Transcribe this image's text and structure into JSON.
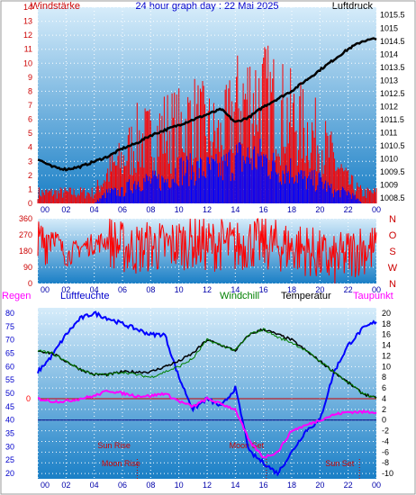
{
  "header": {
    "title": "24 hour graph day : 22 Mai 2025",
    "left_label": "Windstärke",
    "right_label": "Luftdruck"
  },
  "legend2": {
    "regen": "Regen",
    "luftfeuchte": "Luftfeuchte",
    "windchill": "Windchill",
    "temperatur": "Temperatur",
    "taupunkt": "Taupunkt"
  },
  "colors": {
    "wind_speed": "#ff0000",
    "wind_gust": "#0000ff",
    "pressure": "#000000",
    "humidity": "#0000ff",
    "temperature": "#000000",
    "windchill": "#008000",
    "dewpoint": "#ff00ff",
    "regen": "#ff0000",
    "bg_top": "#d8ecf8",
    "bg_bottom": "#1e82c8"
  },
  "chart_data": [
    {
      "type": "line",
      "title": "24 hour graph day : 22 Mai 2025",
      "x_tick_labels": [
        "00",
        "02",
        "04",
        "06",
        "08",
        "10",
        "12",
        "14",
        "16",
        "18",
        "20",
        "22",
        "00"
      ],
      "left_axis": {
        "label": "Windstärke",
        "ticks": [
          0,
          1,
          2,
          3,
          4,
          5,
          6,
          7,
          8,
          9,
          10,
          11,
          12,
          13,
          14
        ],
        "ylim": [
          0,
          14
        ]
      },
      "right_axis": {
        "label": "Luftdruck",
        "ticks": [
          1008.5,
          1009,
          1009.5,
          1010,
          1010.5,
          1011,
          1011.5,
          1012,
          1012.5,
          1013,
          1013.5,
          1014,
          1014.5,
          1015,
          1015.5
        ],
        "ylim": [
          1008.3,
          1015.8
        ]
      },
      "series": [
        {
          "name": "",
          "axis": "right",
          "x": [
            0,
            1,
            2,
            3,
            4,
            5,
            6,
            7,
            8,
            9,
            10,
            11,
            12,
            13,
            14,
            15,
            16,
            17,
            18,
            19,
            20,
            21,
            22,
            23,
            24
          ],
          "values": [
            1010,
            1009.7,
            1009.6,
            1009.7,
            1009.9,
            1010.1,
            1010.4,
            1010.6,
            1010.9,
            1011.1,
            1011.3,
            1011.5,
            1011.7,
            1011.9,
            1011.4,
            1011.6,
            1012.0,
            1012.3,
            1012.6,
            1013.0,
            1013.4,
            1013.8,
            1014.2,
            1014.5,
            1014.6
          ]
        },
        {
          "name": "",
          "axis": "left",
          "x": [
            0,
            1,
            2,
            3,
            4,
            5,
            6,
            7,
            8,
            9,
            10,
            11,
            12,
            13,
            14,
            15,
            16,
            17,
            18,
            19,
            20,
            21,
            22,
            23,
            24
          ],
          "values": [
            1,
            1,
            1,
            1,
            1,
            3,
            4,
            6,
            6,
            7,
            7,
            8,
            7,
            6,
            9,
            10,
            10,
            9,
            8,
            7,
            6,
            4,
            2,
            1,
            1
          ]
        },
        {
          "name": "",
          "axis": "left",
          "x": [
            0,
            1,
            2,
            3,
            4,
            5,
            6,
            7,
            8,
            9,
            10,
            11,
            12,
            13,
            14,
            15,
            16,
            17,
            18,
            19,
            20,
            21,
            22,
            23,
            24
          ],
          "values": [
            0,
            0,
            0,
            0,
            0,
            1,
            1,
            2,
            2,
            2,
            3,
            3,
            3,
            3,
            4,
            4,
            4,
            3,
            3,
            2,
            2,
            1,
            1,
            0,
            0
          ]
        }
      ]
    },
    {
      "type": "line",
      "x_tick_labels": [
        "00",
        "02",
        "04",
        "06",
        "08",
        "10",
        "12",
        "14",
        "16",
        "18",
        "20",
        "22",
        "00"
      ],
      "left_axis": {
        "ticks": [
          0,
          90,
          180,
          270,
          360
        ],
        "ylim": [
          0,
          360
        ]
      },
      "right_axis": {
        "ticks": [
          "N",
          "W",
          "S",
          "O",
          "N"
        ]
      },
      "series": [
        {
          "name": "",
          "x": [
            0,
            1,
            2,
            3,
            4,
            5,
            6,
            7,
            8,
            9,
            10,
            11,
            12,
            13,
            14,
            15,
            16,
            17,
            18,
            19,
            20,
            21,
            22,
            23,
            24
          ],
          "values": [
            200,
            290,
            150,
            200,
            220,
            240,
            200,
            190,
            210,
            200,
            220,
            230,
            210,
            220,
            200,
            230,
            220,
            210,
            200,
            190,
            150,
            120,
            160,
            200,
            180
          ]
        }
      ]
    },
    {
      "type": "line",
      "x_tick_labels": [
        "00",
        "02",
        "04",
        "06",
        "08",
        "10",
        "12",
        "14",
        "16",
        "18",
        "20",
        "22",
        "00"
      ],
      "left_axis": {
        "label": "Luftfeuchte",
        "ticks": [
          20,
          25,
          30,
          35,
          40,
          45,
          50,
          55,
          60,
          65,
          70,
          75,
          80
        ],
        "ylim": [
          18,
          82
        ]
      },
      "right_axis": {
        "label": "Temperatur",
        "ticks": [
          -10,
          -8,
          -6,
          -4,
          -2,
          0,
          2,
          4,
          6,
          8,
          10,
          12,
          14,
          16,
          18,
          20
        ],
        "ylim": [
          -11,
          21
        ]
      },
      "regen_axis": {
        "label": "Regen",
        "ticks": [
          "0"
        ]
      },
      "annotations": [
        {
          "text": "Sun Rise",
          "x": 5.4
        },
        {
          "text": "Moon Rise",
          "x": 5.9
        },
        {
          "text": "Moon Set",
          "x": 14.8
        },
        {
          "text": "Sun Set",
          "x": 21.4
        }
      ],
      "series": [
        {
          "name": "Luftfeuchte",
          "axis": "left",
          "x": [
            0,
            1,
            2,
            3,
            4,
            5,
            6,
            7,
            8,
            9,
            10,
            11,
            12,
            13,
            14,
            15,
            16,
            17,
            18,
            19,
            20,
            21,
            22,
            23,
            24
          ],
          "values": [
            58,
            64,
            72,
            78,
            80,
            78,
            76,
            74,
            72,
            72,
            56,
            44,
            48,
            45,
            52,
            28,
            24,
            20,
            28,
            36,
            40,
            58,
            68,
            74,
            77
          ]
        },
        {
          "name": "Temperatur",
          "axis": "right",
          "x": [
            0,
            1,
            2,
            3,
            4,
            5,
            6,
            7,
            8,
            9,
            10,
            11,
            12,
            13,
            14,
            15,
            16,
            17,
            18,
            19,
            20,
            21,
            22,
            23,
            24
          ],
          "values": [
            13,
            12.5,
            11,
            9.5,
            8.5,
            8.5,
            9,
            9,
            9,
            10,
            11,
            12.5,
            15,
            14,
            13,
            16,
            17,
            16,
            15,
            13,
            11,
            9,
            7,
            5,
            4
          ]
        },
        {
          "name": "Windchill",
          "axis": "right",
          "x": [
            0,
            1,
            2,
            3,
            4,
            5,
            6,
            7,
            8,
            9,
            10,
            11,
            12,
            13,
            14,
            15,
            16,
            17,
            18,
            19,
            20,
            21,
            22,
            23,
            24
          ],
          "values": [
            13,
            12.5,
            11,
            9.5,
            8.5,
            8.5,
            9,
            8.5,
            8,
            9,
            10,
            11.5,
            15,
            14,
            13,
            16,
            17,
            15.5,
            14.5,
            13,
            11,
            9,
            7,
            5,
            4
          ]
        },
        {
          "name": "Taupunkt",
          "axis": "right",
          "x": [
            0,
            1,
            2,
            3,
            4,
            5,
            6,
            7,
            8,
            9,
            10,
            11,
            12,
            13,
            14,
            15,
            16,
            17,
            18,
            19,
            20,
            21,
            22,
            23,
            24
          ],
          "values": [
            4,
            3.5,
            3.5,
            4,
            4.5,
            5.5,
            5,
            4.5,
            4.5,
            5,
            3.5,
            2.5,
            4,
            3,
            2,
            -4,
            -7,
            -6,
            -2,
            -1,
            0,
            1,
            1.5,
            1.5,
            1.5
          ]
        }
      ]
    }
  ]
}
